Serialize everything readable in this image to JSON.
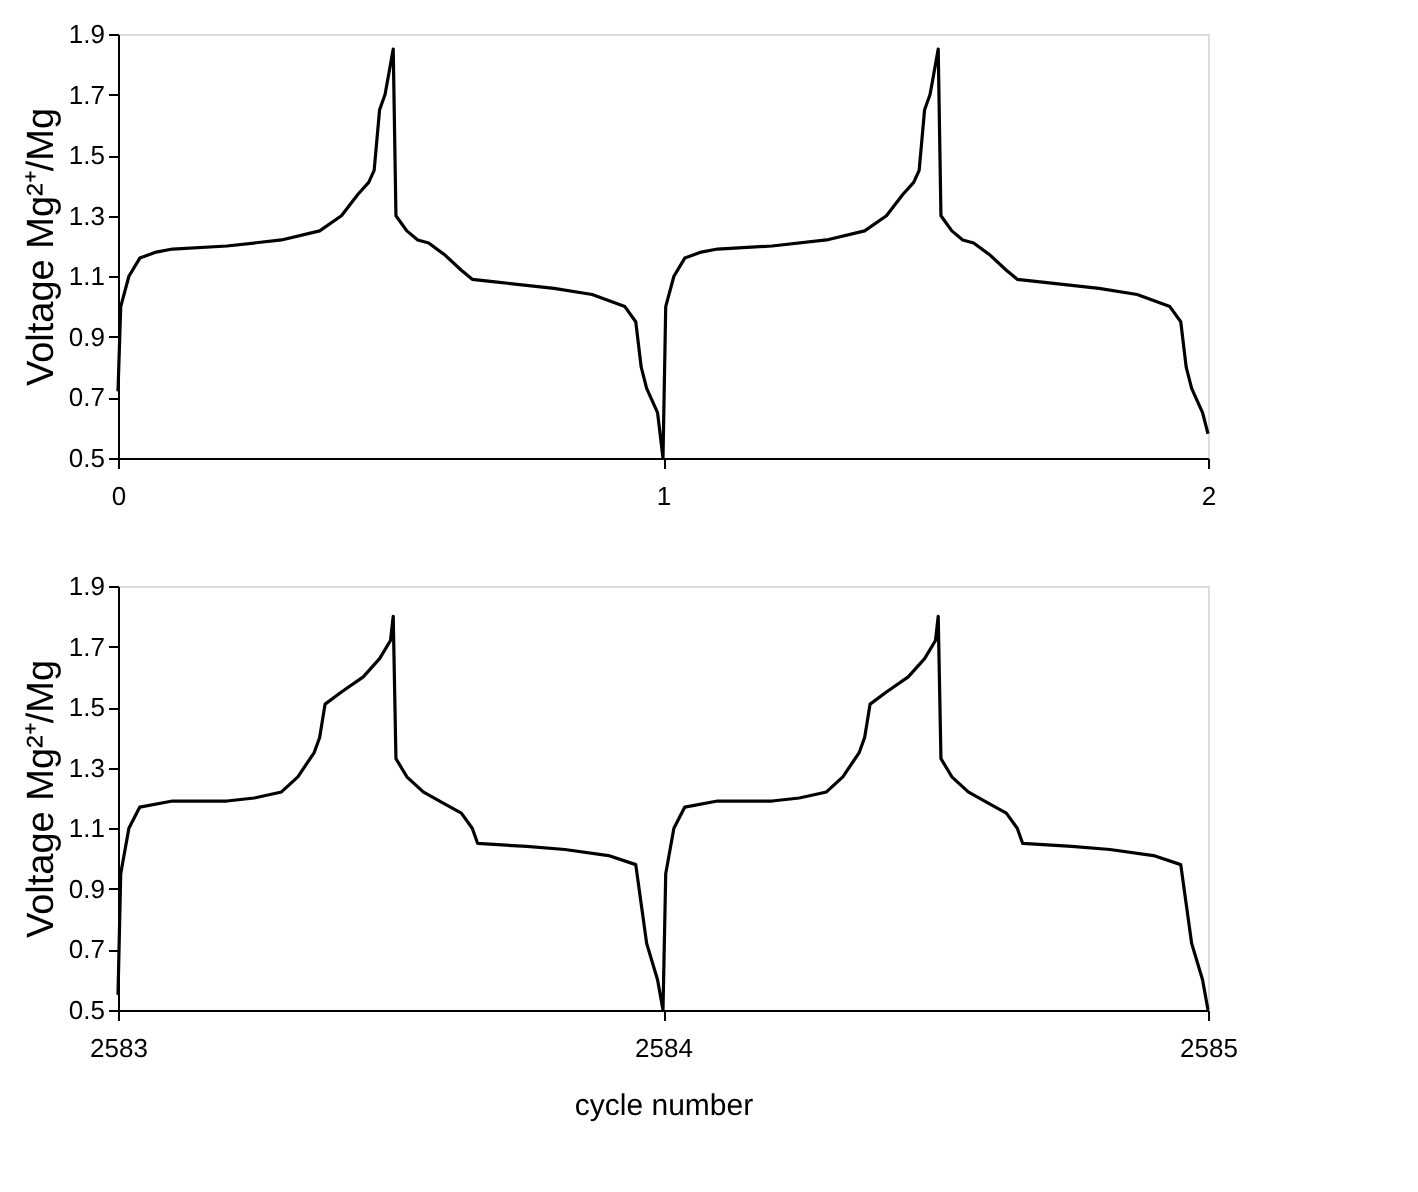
{
  "chart_data": [
    {
      "type": "line",
      "ylabel": "Voltage Mg²⁺/Mg",
      "xlim": [
        0,
        2
      ],
      "xticks": [
        0,
        1,
        2
      ],
      "ylim": [
        0.5,
        1.9
      ],
      "yticks": [
        0.5,
        0.7,
        0.9,
        1.1,
        1.3,
        1.5,
        1.7,
        1.9
      ],
      "grid": false,
      "legend": false,
      "marker": "none",
      "line_style": "solid",
      "series": [
        {
          "color": "#000000",
          "x": [
            0,
            0.005,
            0.02,
            0.04,
            0.07,
            0.1,
            0.2,
            0.3,
            0.37,
            0.41,
            0.44,
            0.46,
            0.47,
            0.48,
            0.49,
            0.5,
            0.505,
            0.51,
            0.53,
            0.55,
            0.57,
            0.6,
            0.63,
            0.65,
            0.7,
            0.8,
            0.87,
            0.93,
            0.95,
            0.96,
            0.97,
            0.99,
            1.0,
            1.005,
            1.02,
            1.04,
            1.07,
            1.1,
            1.2,
            1.3,
            1.37,
            1.41,
            1.44,
            1.46,
            1.47,
            1.48,
            1.49,
            1.5,
            1.505,
            1.51,
            1.53,
            1.55,
            1.57,
            1.6,
            1.63,
            1.65,
            1.7,
            1.8,
            1.87,
            1.93,
            1.95,
            1.96,
            1.97,
            1.99,
            2.0
          ],
          "values": [
            0.72,
            1.0,
            1.1,
            1.16,
            1.18,
            1.19,
            1.2,
            1.22,
            1.25,
            1.3,
            1.37,
            1.41,
            1.45,
            1.65,
            1.7,
            1.8,
            1.85,
            1.3,
            1.25,
            1.22,
            1.21,
            1.17,
            1.12,
            1.09,
            1.08,
            1.06,
            1.04,
            1.0,
            0.95,
            0.8,
            0.73,
            0.65,
            0.5,
            1.0,
            1.1,
            1.16,
            1.18,
            1.19,
            1.2,
            1.22,
            1.25,
            1.3,
            1.37,
            1.41,
            1.45,
            1.65,
            1.7,
            1.8,
            1.85,
            1.3,
            1.25,
            1.22,
            1.21,
            1.17,
            1.12,
            1.09,
            1.08,
            1.06,
            1.04,
            1.0,
            0.95,
            0.8,
            0.73,
            0.65,
            0.58
          ]
        }
      ]
    },
    {
      "type": "line",
      "xlabel": "cycle number",
      "ylabel": "Voltage Mg²⁺/Mg",
      "xlim": [
        2583,
        2585
      ],
      "xticks": [
        2583,
        2584,
        2585
      ],
      "ylim": [
        0.5,
        1.9
      ],
      "yticks": [
        0.5,
        0.7,
        0.9,
        1.1,
        1.3,
        1.5,
        1.7,
        1.9
      ],
      "grid": false,
      "legend": false,
      "marker": "none",
      "line_style": "solid",
      "series": [
        {
          "color": "#000000",
          "x": [
            2583,
            2583.005,
            2583.02,
            2583.04,
            2583.1,
            2583.2,
            2583.25,
            2583.3,
            2583.33,
            2583.36,
            2583.37,
            2583.38,
            2583.41,
            2583.45,
            2583.48,
            2583.5,
            2583.505,
            2583.51,
            2583.53,
            2583.56,
            2583.6,
            2583.63,
            2583.65,
            2583.66,
            2583.75,
            2583.82,
            2583.9,
            2583.95,
            2583.96,
            2583.97,
            2583.99,
            2584,
            2584.005,
            2584.02,
            2584.04,
            2584.1,
            2584.2,
            2584.25,
            2584.3,
            2584.33,
            2584.36,
            2584.37,
            2584.38,
            2584.41,
            2584.45,
            2584.48,
            2584.5,
            2584.505,
            2584.51,
            2584.53,
            2584.56,
            2584.6,
            2584.63,
            2584.65,
            2584.66,
            2584.75,
            2584.82,
            2584.9,
            2584.95,
            2584.96,
            2584.97,
            2584.99,
            2585
          ],
          "values": [
            0.55,
            0.95,
            1.1,
            1.17,
            1.19,
            1.19,
            1.2,
            1.22,
            1.27,
            1.35,
            1.4,
            1.51,
            1.55,
            1.6,
            1.66,
            1.72,
            1.8,
            1.33,
            1.27,
            1.22,
            1.18,
            1.15,
            1.1,
            1.05,
            1.04,
            1.03,
            1.01,
            0.98,
            0.85,
            0.72,
            0.6,
            0.5,
            0.95,
            1.1,
            1.17,
            1.19,
            1.19,
            1.2,
            1.22,
            1.27,
            1.35,
            1.4,
            1.51,
            1.55,
            1.6,
            1.66,
            1.72,
            1.8,
            1.33,
            1.27,
            1.22,
            1.18,
            1.15,
            1.1,
            1.05,
            1.04,
            1.03,
            1.01,
            0.98,
            0.85,
            0.72,
            0.6,
            0.5
          ]
        }
      ]
    }
  ]
}
